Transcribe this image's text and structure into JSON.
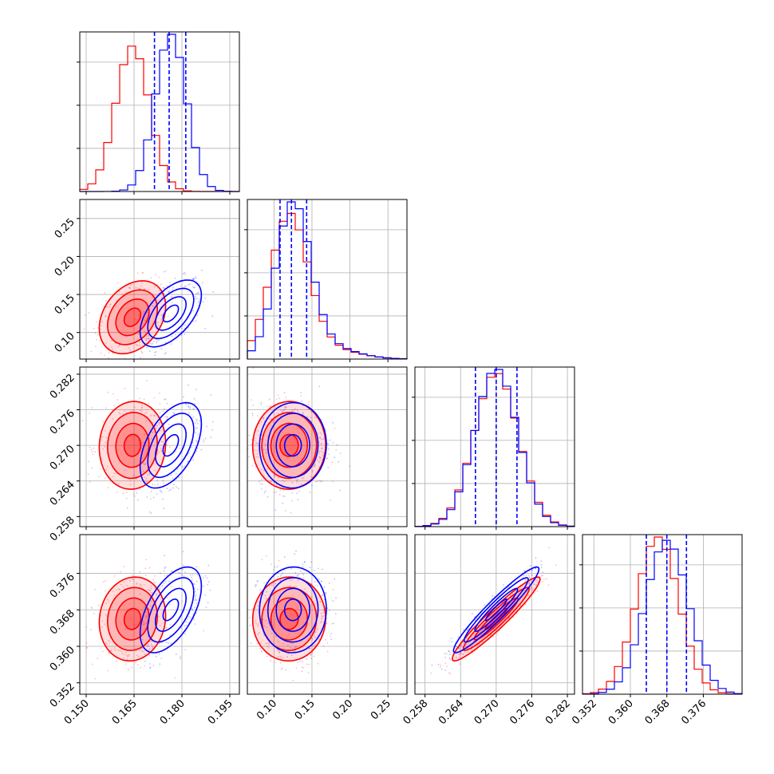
{
  "chart_data": {
    "type": "corner",
    "parameters": [
      {
        "ticks": [
          0.15,
          0.165,
          0.18,
          0.195
        ],
        "tick_labels": [
          "0.150",
          "0.165",
          "0.180",
          "0.195"
        ],
        "range": [
          0.148,
          0.198
        ]
      },
      {
        "ticks": [
          0.1,
          0.15,
          0.2,
          0.25
        ],
        "tick_labels": [
          "0.10",
          "0.15",
          "0.20",
          "0.25"
        ],
        "range": [
          0.065,
          0.275
        ]
      },
      {
        "ticks": [
          0.258,
          0.264,
          0.27,
          0.276,
          0.282
        ],
        "tick_labels": [
          "0.258",
          "0.264",
          "0.270",
          "0.276",
          "0.282"
        ],
        "range": [
          0.2563,
          0.2832
        ]
      },
      {
        "ticks": [
          0.352,
          0.36,
          0.368,
          0.376
        ],
        "tick_labels": [
          "0.352",
          "0.360",
          "0.368",
          "0.376"
        ],
        "range": [
          0.3495,
          0.3845
        ]
      }
    ],
    "series": [
      {
        "color": "#0000ff",
        "mean": [
          0.1765,
          0.125,
          0.27,
          0.368
        ],
        "sigma": [
          0.0048,
          0.022,
          0.0036,
          0.0047
        ],
        "correlation": [
          [
            1.0,
            0.55,
            0.5,
            0.55
          ],
          [
            0.55,
            1.0,
            0.02,
            0.02
          ],
          [
            0.5,
            0.02,
            1.0,
            0.95
          ],
          [
            0.55,
            0.02,
            0.95,
            1.0
          ]
        ],
        "quantiles": [
          [
            0.1714,
            0.176,
            0.1812
          ],
          [
            0.108,
            0.123,
            0.143
          ],
          [
            0.2665,
            0.27,
            0.2735
          ],
          [
            0.3635,
            0.368,
            0.3723
          ]
        ]
      },
      {
        "color": "#ff0000",
        "mean": [
          0.1645,
          0.12,
          0.27,
          0.366
        ],
        "sigma": [
          0.0052,
          0.024,
          0.0037,
          0.0046
        ],
        "correlation": [
          [
            1.0,
            0.3,
            0.05,
            0.08
          ],
          [
            0.3,
            1.0,
            0.02,
            0.02
          ],
          [
            0.05,
            0.02,
            1.0,
            0.95
          ],
          [
            0.08,
            0.02,
            0.95,
            1.0
          ]
        ]
      }
    ],
    "grid": true,
    "legend": "none"
  }
}
